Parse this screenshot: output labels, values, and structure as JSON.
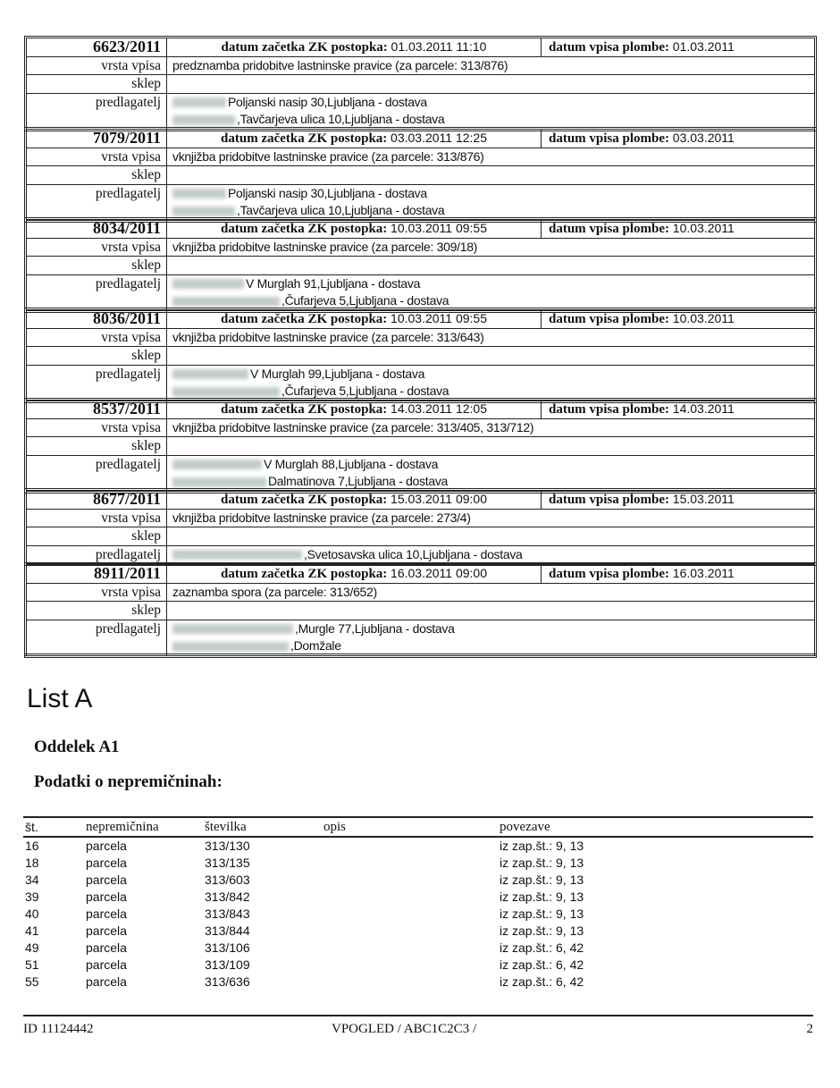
{
  "labels": {
    "type": "vrsta vpisa",
    "decision": "sklep",
    "applicant": "predlagatelj",
    "start": "datum začetka ZK postopka:",
    "seal": "datum vpisa plombe:"
  },
  "entries": [
    {
      "number": "6623/2011",
      "start": "01.03.2011 11:10",
      "seal": "01.03.2011",
      "type": "predznamba pridobitve lastninske pravice (za parcele: 313/876)",
      "applicants": [
        "Poljanski nasip 30,Ljubljana - dostava",
        ",Tavčarjeva ulica 10,Ljubljana - dostava"
      ]
    },
    {
      "number": "7079/2011",
      "start": "03.03.2011 12:25",
      "seal": "03.03.2011",
      "type": "vknjižba pridobitve lastninske pravice (za parcele: 313/876)",
      "applicants": [
        "Poljanski nasip 30,Ljubljana - dostava",
        ",Tavčarjeva ulica 10,Ljubljana - dostava"
      ]
    },
    {
      "number": "8034/2011",
      "start": "10.03.2011 09:55",
      "seal": "10.03.2011",
      "type": "vknjižba pridobitve lastninske pravice (za parcele: 309/18)",
      "applicants": [
        "V Murglah 91,Ljubljana - dostava",
        ",Čufarjeva 5,Ljubljana - dostava"
      ]
    },
    {
      "number": "8036/2011",
      "start": "10.03.2011 09:55",
      "seal": "10.03.2011",
      "type": "vknjižba pridobitve lastninske pravice (za parcele: 313/643)",
      "applicants": [
        "V Murglah 99,Ljubljana - dostava",
        ",Čufarjeva 5,Ljubljana - dostava"
      ]
    },
    {
      "number": "8537/2011",
      "start": "14.03.2011 12:05",
      "seal": "14.03.2011",
      "type": "vknjižba pridobitve lastninske pravice (za parcele: 313/405, 313/712)",
      "applicants": [
        "V Murglah 88,Ljubljana - dostava",
        "Dalmatinova 7,Ljubljana - dostava"
      ]
    },
    {
      "number": "8677/2011",
      "start": "15.03.2011 09:00",
      "seal": "15.03.2011",
      "type": "vknjižba pridobitve lastninske pravice (za parcele: 273/4)",
      "applicants": [
        ",Svetosavska ulica 10,Ljubljana - dostava"
      ]
    },
    {
      "number": "8911/2011",
      "start": "16.03.2011 09:00",
      "seal": "16.03.2011",
      "type": "zaznamba spora (za parcele: 313/652)",
      "applicants": [
        ",Murgle 77,Ljubljana - dostava",
        ",Domžale"
      ]
    }
  ],
  "section": {
    "title": "List A",
    "division": "Oddelek A1",
    "subtitle": "Podatki o nepremičninah:"
  },
  "table": {
    "headers": [
      "št.",
      "nepremičnina",
      "številka",
      "opis",
      "povezave"
    ],
    "rows": [
      [
        "16",
        "parcela",
        "313/130",
        "",
        "iz zap.št.: 9, 13"
      ],
      [
        "18",
        "parcela",
        "313/135",
        "",
        "iz zap.št.: 9, 13"
      ],
      [
        "34",
        "parcela",
        "313/603",
        "",
        "iz zap.št.: 9, 13"
      ],
      [
        "39",
        "parcela",
        "313/842",
        "",
        "iz zap.št.: 9, 13"
      ],
      [
        "40",
        "parcela",
        "313/843",
        "",
        "iz zap.št.: 9, 13"
      ],
      [
        "41",
        "parcela",
        "313/844",
        "",
        "iz zap.št.: 9, 13"
      ],
      [
        "49",
        "parcela",
        "313/106",
        "",
        "iz zap.št.: 6, 42"
      ],
      [
        "51",
        "parcela",
        "313/109",
        "",
        "iz zap.št.: 6, 42"
      ],
      [
        "55",
        "parcela",
        "313/636",
        "",
        "iz zap.št.: 6, 42"
      ]
    ]
  },
  "footer": {
    "id": "ID 11124442",
    "center": "VPOGLED / ABC1C2C3 /",
    "page": "2"
  }
}
